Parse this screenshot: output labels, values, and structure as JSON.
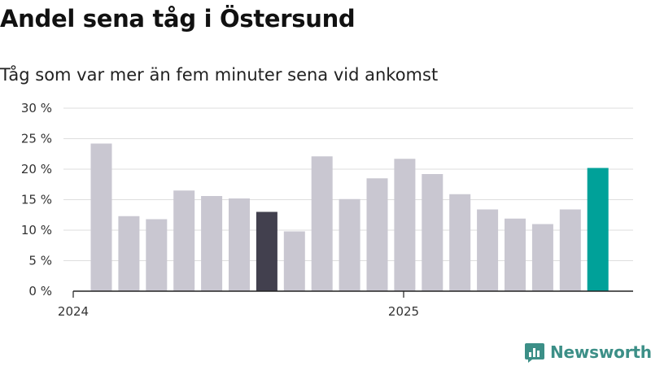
{
  "chart_data": {
    "type": "bar",
    "title": "Andel sena tåg i Östersund",
    "subtitle": "Tåg som var mer än fem minuter sena vid ankomst",
    "x_tick_labels": [
      "2024",
      "2025"
    ],
    "categories": [
      "2024-01",
      "2024-02",
      "2024-03",
      "2024-04",
      "2024-05",
      "2024-06",
      "2024-07",
      "2024-08",
      "2024-09",
      "2024-10",
      "2024-11",
      "2024-12",
      "2025-01",
      "2025-02",
      "2025-03",
      "2025-04",
      "2025-05",
      "2025-06",
      "2025-07"
    ],
    "values": [
      24.2,
      12.3,
      11.8,
      16.5,
      15.6,
      15.2,
      13.0,
      9.8,
      22.1,
      15.1,
      18.5,
      21.7,
      19.2,
      15.9,
      13.4,
      11.9,
      11.0,
      13.4,
      20.2
    ],
    "ylim": [
      0,
      30
    ],
    "y_ticks": [
      0,
      5,
      10,
      15,
      20,
      25,
      30
    ],
    "y_tick_labels": [
      "0 %",
      "5 %",
      "10 %",
      "15 %",
      "20 %",
      "25 %",
      "30 %"
    ],
    "grid": true,
    "colors": {
      "default": "#c9c7d1",
      "highlight_dark": "#42404e",
      "highlight_accent": "#00a199"
    },
    "highlight_dark_index": 6,
    "highlight_accent_index": 18
  },
  "branding": {
    "logo_text": "Newsworthy",
    "logo_color": "#3c8f87",
    "logo_icon": "bar-chart-badge-icon"
  }
}
